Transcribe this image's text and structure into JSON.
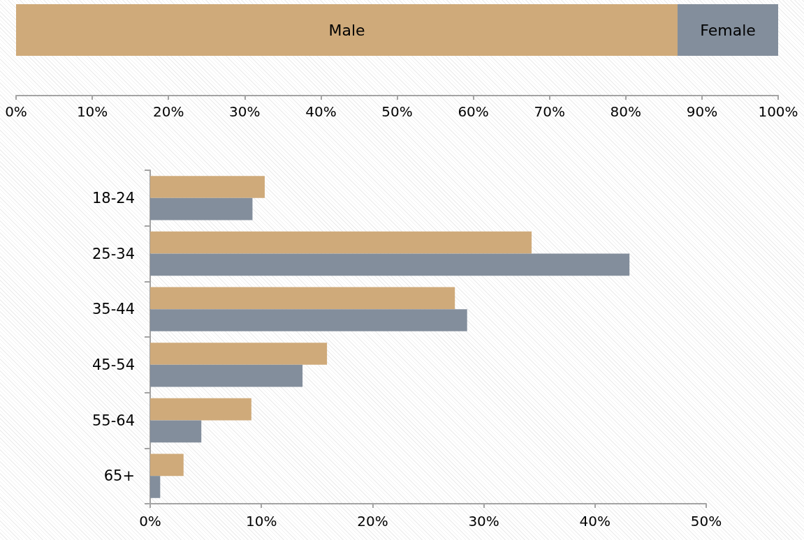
{
  "chart_data": [
    {
      "type": "bar",
      "orientation": "horizontal",
      "stacked": true,
      "categories": [
        null
      ],
      "series": [
        {
          "name": "Male",
          "color": "#cfaa7a",
          "values": [
            86.8
          ]
        },
        {
          "name": "Female",
          "color": "#838e9c",
          "values": [
            13.2
          ]
        }
      ],
      "xlim": [
        0,
        100
      ],
      "xticks": [
        {
          "value": 0,
          "label": "0%"
        },
        {
          "value": 10,
          "label": "10%"
        },
        {
          "value": 20,
          "label": "20%"
        },
        {
          "value": 30,
          "label": "30%"
        },
        {
          "value": 40,
          "label": "40%"
        },
        {
          "value": 50,
          "label": "50%"
        },
        {
          "value": 60,
          "label": "60%"
        },
        {
          "value": 70,
          "label": "70%"
        },
        {
          "value": 80,
          "label": "80%"
        },
        {
          "value": 90,
          "label": "90%"
        },
        {
          "value": 100,
          "label": "100%"
        }
      ],
      "tick_labels": "x"
    },
    {
      "type": "bar",
      "orientation": "horizontal",
      "categories": [
        "18-24",
        "25-34",
        "35-44",
        "45-54",
        "55-64",
        "65+"
      ],
      "series": [
        {
          "color": "#cfaa7a",
          "values": [
            10.3,
            34.3,
            27.4,
            15.9,
            9.1,
            3.0
          ]
        },
        {
          "color": "#838e9c",
          "values": [
            9.2,
            43.1,
            28.5,
            13.7,
            4.6,
            0.9
          ]
        }
      ],
      "xlim": [
        0,
        50
      ],
      "xticks": [
        {
          "value": 0,
          "label": "0%"
        },
        {
          "value": 10,
          "label": "10%"
        },
        {
          "value": 20,
          "label": "20%"
        },
        {
          "value": 30,
          "label": "30%"
        },
        {
          "value": 40,
          "label": "40%"
        },
        {
          "value": 50,
          "label": "50%"
        }
      ]
    }
  ]
}
